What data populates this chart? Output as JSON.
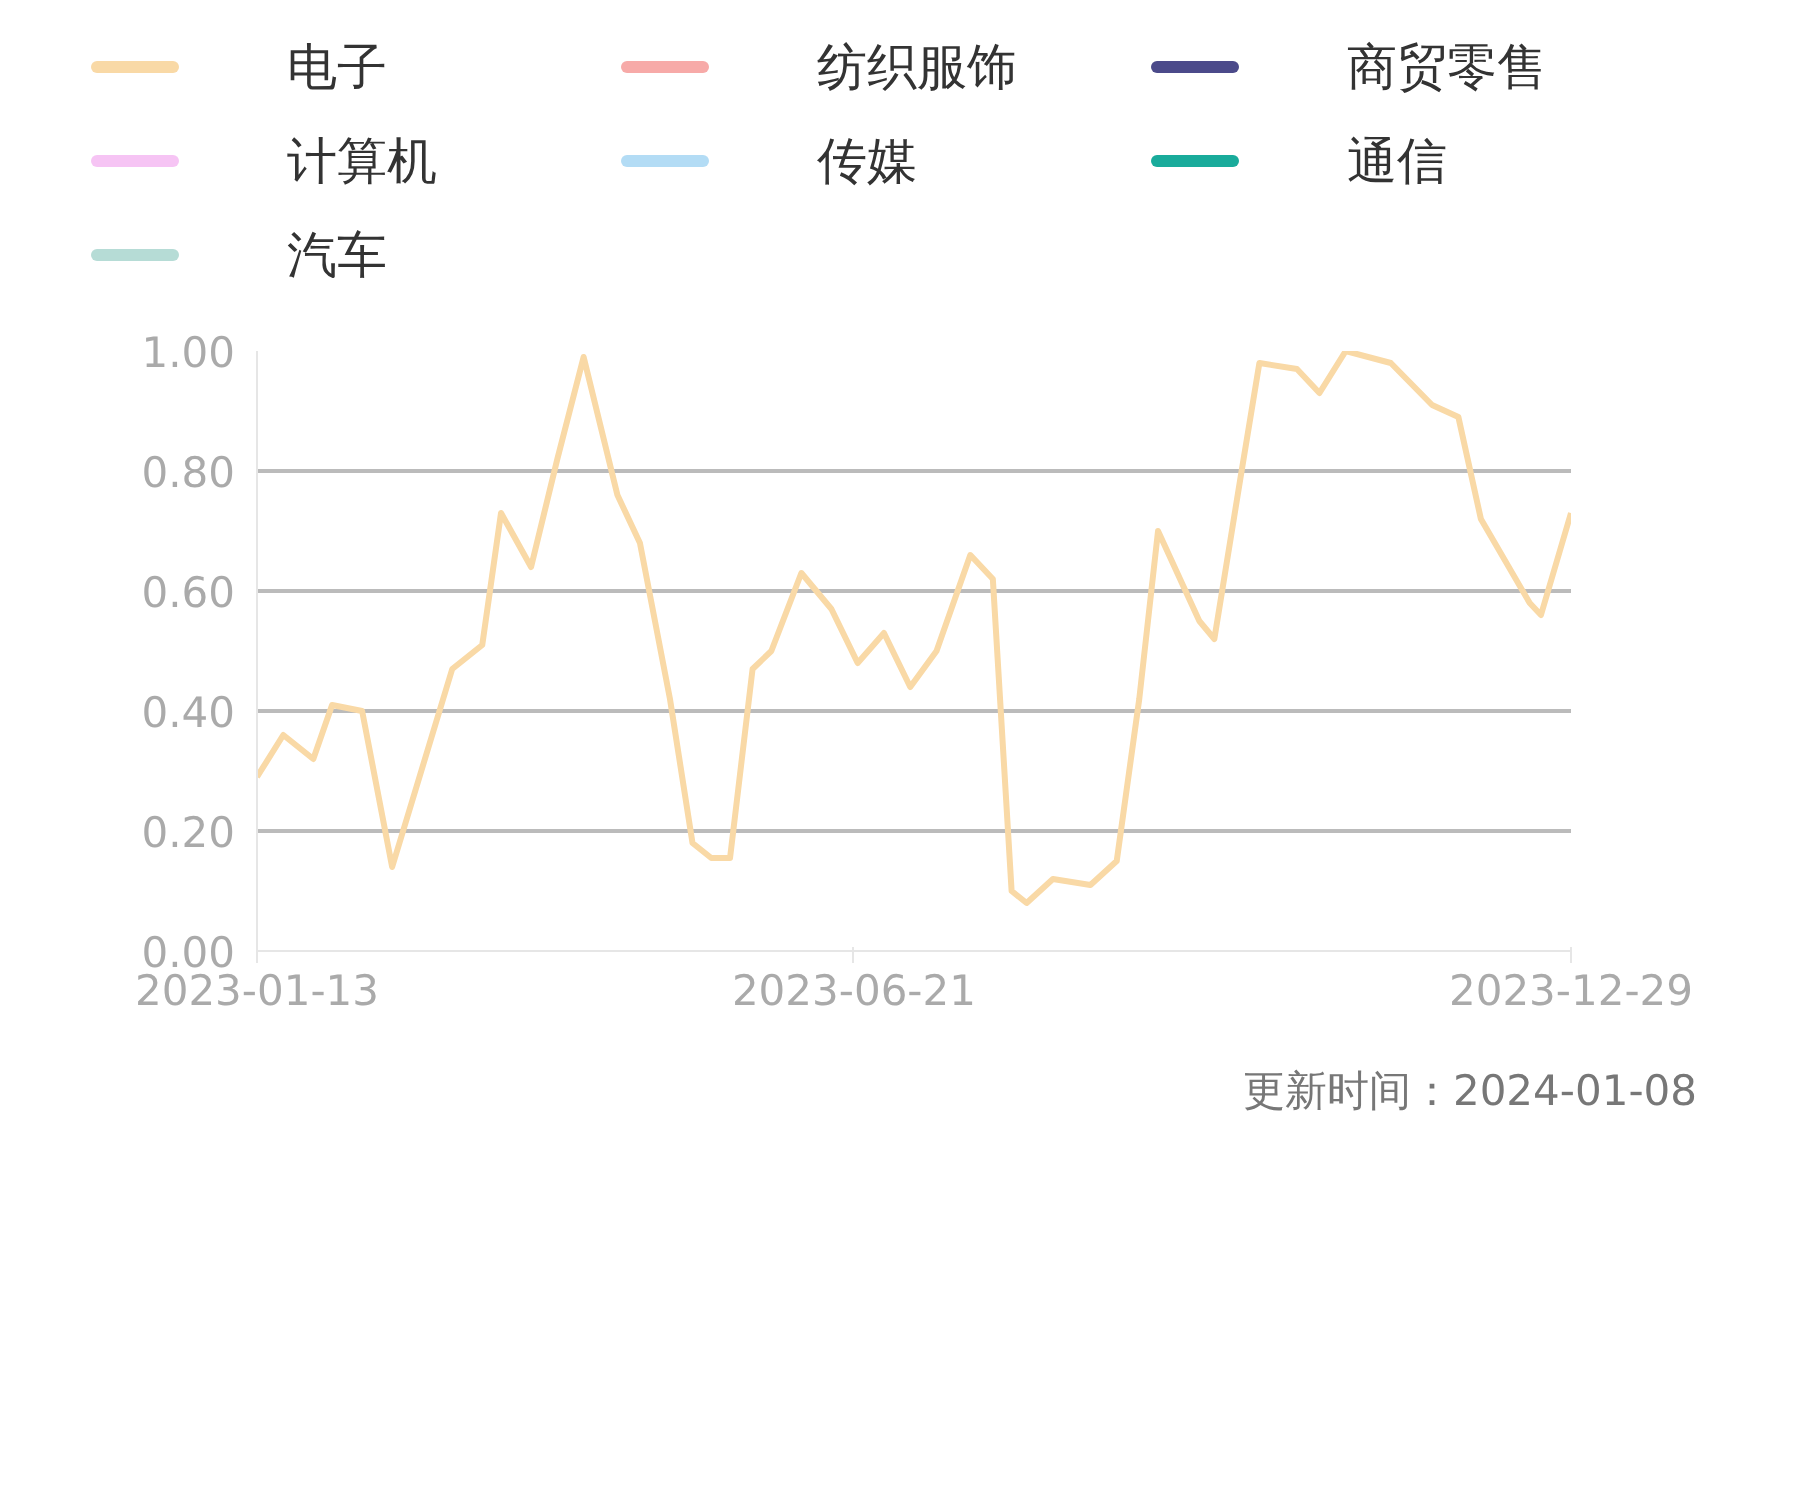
{
  "chart_data": {
    "type": "line",
    "legend": "top",
    "grid": "y",
    "ylim": [
      0,
      1
    ],
    "yticks": [
      {
        "value": 0,
        "label": "0.00"
      },
      {
        "value": 0.2,
        "label": "0.20"
      },
      {
        "value": 0.4,
        "label": "0.40"
      },
      {
        "value": 0.6,
        "label": "0.60"
      },
      {
        "value": 0.8,
        "label": "0.80"
      },
      {
        "value": 1,
        "label": "1.00"
      }
    ],
    "xlim": [
      "2023-01-13",
      "2023-12-29"
    ],
    "xticks": [
      "2023-01-13",
      "2023-06-21",
      "2023-12-29"
    ],
    "x": [
      "2023-01-13",
      "2023-01-20",
      "2023-01-28",
      "2023-02-02",
      "2023-02-10",
      "2023-02-18",
      "2023-03-06",
      "2023-03-14",
      "2023-03-19",
      "2023-03-27",
      "2023-04-03",
      "2023-04-10",
      "2023-04-19",
      "2023-04-25",
      "2023-05-03",
      "2023-05-09",
      "2023-05-14",
      "2023-05-19",
      "2023-05-25",
      "2023-05-30",
      "2023-06-07",
      "2023-06-15",
      "2023-06-22",
      "2023-06-29",
      "2023-07-06",
      "2023-07-13",
      "2023-07-22",
      "2023-07-28",
      "2023-08-02",
      "2023-08-06",
      "2023-08-13",
      "2023-08-23",
      "2023-08-30",
      "2023-09-05",
      "2023-09-10",
      "2023-09-21",
      "2023-09-25",
      "2023-10-02",
      "2023-10-07",
      "2023-10-17",
      "2023-10-23",
      "2023-10-30",
      "2023-11-11",
      "2023-11-22",
      "2023-11-29",
      "2023-12-05",
      "2023-12-18",
      "2023-12-21",
      "2023-12-29"
    ],
    "series": [
      {
        "name": "电子",
        "color": "#f9d9a6",
        "values": [
          0.29,
          0.36,
          0.32,
          0.41,
          0.4,
          0.14,
          0.47,
          0.51,
          0.73,
          0.64,
          0.82,
          0.99,
          0.76,
          0.68,
          0.42,
          0.18,
          0.155,
          0.155,
          0.47,
          0.5,
          0.63,
          0.57,
          0.48,
          0.53,
          0.44,
          0.5,
          0.66,
          0.62,
          0.1,
          0.08,
          0.12,
          0.11,
          0.15,
          0.42,
          0.7,
          0.55,
          0.52,
          0.79,
          0.98,
          0.97,
          0.93,
          1.0,
          0.98,
          0.91,
          0.89,
          0.72,
          0.58,
          0.56,
          0.73
        ]
      },
      {
        "name": "纺织服饰",
        "color": "#f7aaa8",
        "values": [
          null,
          null,
          null,
          null,
          null,
          null,
          null,
          null,
          null,
          null,
          null,
          null,
          null,
          null,
          null,
          null,
          null,
          null,
          null,
          null,
          null,
          null,
          null,
          null,
          null,
          null,
          null,
          null,
          null,
          null,
          null,
          null,
          null,
          null,
          null,
          null,
          null,
          null,
          null,
          null,
          null,
          null,
          null,
          null,
          null,
          null,
          null,
          null,
          null
        ]
      },
      {
        "name": "商贸零售",
        "color": "#4b4a8a",
        "values": [
          null,
          null,
          null,
          null,
          null,
          null,
          null,
          null,
          null,
          null,
          null,
          null,
          null,
          null,
          null,
          null,
          null,
          null,
          null,
          null,
          null,
          null,
          null,
          null,
          null,
          null,
          null,
          null,
          null,
          null,
          null,
          null,
          null,
          null,
          null,
          null,
          null,
          null,
          null,
          null,
          null,
          null,
          null,
          null,
          null,
          null,
          null,
          null,
          null
        ]
      },
      {
        "name": "计算机",
        "color": "#f6c4f4",
        "values": [
          null,
          null,
          null,
          null,
          null,
          null,
          null,
          null,
          null,
          null,
          null,
          null,
          null,
          null,
          null,
          null,
          null,
          null,
          null,
          null,
          null,
          null,
          null,
          null,
          null,
          null,
          null,
          null,
          null,
          null,
          null,
          null,
          null,
          null,
          null,
          null,
          null,
          null,
          null,
          null,
          null,
          null,
          null,
          null,
          null,
          null,
          null,
          null,
          null
        ]
      },
      {
        "name": "传媒",
        "color": "#b3dcf5",
        "values": [
          null,
          null,
          null,
          null,
          null,
          null,
          null,
          null,
          null,
          null,
          null,
          null,
          null,
          null,
          null,
          null,
          null,
          null,
          null,
          null,
          null,
          null,
          null,
          null,
          null,
          null,
          null,
          null,
          null,
          null,
          null,
          null,
          null,
          null,
          null,
          null,
          null,
          null,
          null,
          null,
          null,
          null,
          null,
          null,
          null,
          null,
          null,
          null,
          null
        ]
      },
      {
        "name": "通信",
        "color": "#19ab9b",
        "values": [
          null,
          null,
          null,
          null,
          null,
          null,
          null,
          null,
          null,
          null,
          null,
          null,
          null,
          null,
          null,
          null,
          null,
          null,
          null,
          null,
          null,
          null,
          null,
          null,
          null,
          null,
          null,
          null,
          null,
          null,
          null,
          null,
          null,
          null,
          null,
          null,
          null,
          null,
          null,
          null,
          null,
          null,
          null,
          null,
          null,
          null,
          null,
          null,
          null
        ]
      },
      {
        "name": "汽车",
        "color": "#b6dcd6",
        "values": [
          null,
          null,
          null,
          null,
          null,
          null,
          null,
          null,
          null,
          null,
          null,
          null,
          null,
          null,
          null,
          null,
          null,
          null,
          null,
          null,
          null,
          null,
          null,
          null,
          null,
          null,
          null,
          null,
          null,
          null,
          null,
          null,
          null,
          null,
          null,
          null,
          null,
          null,
          null,
          null,
          null,
          null,
          null,
          null,
          null,
          null,
          null,
          null,
          null
        ]
      }
    ],
    "annotations": [
      "更新时间：2024-01-08"
    ]
  }
}
